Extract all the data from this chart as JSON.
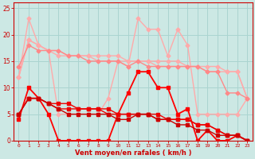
{
  "xlabel": "Vent moyen/en rafales ( km/h )",
  "xlim": [
    -0.5,
    23.5
  ],
  "ylim": [
    0,
    26
  ],
  "xticks": [
    0,
    1,
    2,
    3,
    4,
    5,
    6,
    7,
    8,
    9,
    10,
    11,
    12,
    13,
    14,
    15,
    16,
    17,
    18,
    19,
    20,
    21,
    22,
    23
  ],
  "yticks": [
    0,
    5,
    10,
    15,
    20,
    25
  ],
  "bg_color": "#cce8e4",
  "grid_color": "#aad4d0",
  "lines": [
    {
      "x": [
        0,
        1,
        2,
        3,
        4,
        5,
        6,
        7,
        8,
        9,
        10,
        11,
        12,
        13,
        14,
        15,
        16,
        17,
        18,
        19,
        20,
        21,
        22,
        23
      ],
      "y": [
        12,
        19,
        18,
        17,
        17,
        16,
        16,
        16,
        16,
        16,
        16,
        15,
        15,
        15,
        15,
        15,
        15,
        14,
        14,
        14,
        14,
        13,
        13,
        8
      ],
      "color": "#ffaaaa",
      "lw": 1.0,
      "marker": "D",
      "ms": 2.5
    },
    {
      "x": [
        0,
        1,
        2,
        3,
        4,
        5,
        6,
        7,
        8,
        9,
        10,
        11,
        12,
        13,
        14,
        15,
        16,
        17,
        18,
        19,
        20,
        21,
        22,
        23
      ],
      "y": [
        12,
        19,
        18,
        17,
        16,
        16,
        16,
        16,
        15,
        15,
        15,
        15,
        15,
        15,
        14,
        14,
        14,
        14,
        14,
        13,
        13,
        13,
        13,
        8
      ],
      "color": "#ffaaaa",
      "lw": 1.0,
      "marker": "D",
      "ms": 2.5
    },
    {
      "x": [
        0,
        1,
        2,
        3,
        4,
        5,
        6,
        7,
        8,
        9,
        10,
        11,
        12,
        13,
        14,
        15,
        16,
        17,
        18,
        19,
        20,
        21,
        22,
        23
      ],
      "y": [
        12,
        23,
        18,
        17,
        5,
        5,
        5,
        5,
        5,
        8,
        15,
        14,
        23,
        21,
        21,
        16,
        21,
        18,
        5,
        5,
        5,
        5,
        5,
        8
      ],
      "color": "#ffaaaa",
      "lw": 1.0,
      "marker": "D",
      "ms": 2.5
    },
    {
      "x": [
        0,
        1,
        2,
        3,
        4,
        5,
        6,
        7,
        8,
        9,
        10,
        11,
        12,
        13,
        14,
        15,
        16,
        17,
        18,
        19,
        20,
        21,
        22,
        23
      ],
      "y": [
        14,
        18,
        17,
        17,
        17,
        16,
        16,
        15,
        15,
        15,
        15,
        14,
        15,
        14,
        14,
        14,
        14,
        14,
        14,
        13,
        13,
        9,
        9,
        8
      ],
      "color": "#ff8888",
      "lw": 1.0,
      "marker": "D",
      "ms": 2.5
    },
    {
      "x": [
        0,
        1,
        2,
        3,
        4,
        5,
        6,
        7,
        8,
        9,
        10,
        11,
        12,
        13,
        14,
        15,
        16,
        17,
        18,
        19,
        20,
        21,
        22,
        23
      ],
      "y": [
        4,
        10,
        8,
        5,
        0,
        0,
        0,
        0,
        0,
        0,
        5,
        9,
        13,
        13,
        10,
        10,
        5,
        6,
        0,
        2,
        0,
        0,
        1,
        0
      ],
      "color": "#ff0000",
      "lw": 1.3,
      "marker": "s",
      "ms": 2.5
    },
    {
      "x": [
        0,
        1,
        2,
        3,
        4,
        5,
        6,
        7,
        8,
        9,
        10,
        11,
        12,
        13,
        14,
        15,
        16,
        17,
        18,
        19,
        20,
        21,
        22,
        23
      ],
      "y": [
        5,
        8,
        8,
        7,
        7,
        7,
        6,
        6,
        6,
        6,
        5,
        5,
        5,
        5,
        5,
        4,
        4,
        4,
        3,
        3,
        2,
        1,
        1,
        0
      ],
      "color": "#ee0000",
      "lw": 1.0,
      "marker": "s",
      "ms": 2.2
    },
    {
      "x": [
        0,
        1,
        2,
        3,
        4,
        5,
        6,
        7,
        8,
        9,
        10,
        11,
        12,
        13,
        14,
        15,
        16,
        17,
        18,
        19,
        20,
        21,
        22,
        23
      ],
      "y": [
        5,
        8,
        8,
        7,
        6,
        6,
        6,
        6,
        6,
        5,
        5,
        5,
        5,
        5,
        4,
        4,
        4,
        4,
        3,
        3,
        2,
        1,
        1,
        0
      ],
      "color": "#ee0000",
      "lw": 1.0,
      "marker": "s",
      "ms": 2.2
    },
    {
      "x": [
        0,
        1,
        2,
        3,
        4,
        5,
        6,
        7,
        8,
        9,
        10,
        11,
        12,
        13,
        14,
        15,
        16,
        17,
        18,
        19,
        20,
        21,
        22,
        23
      ],
      "y": [
        5,
        8,
        8,
        7,
        6,
        5,
        5,
        5,
        5,
        5,
        4,
        4,
        5,
        5,
        4,
        4,
        3,
        3,
        2,
        2,
        1,
        1,
        1,
        0
      ],
      "color": "#cc0000",
      "lw": 1.0,
      "marker": "s",
      "ms": 2.2
    }
  ]
}
